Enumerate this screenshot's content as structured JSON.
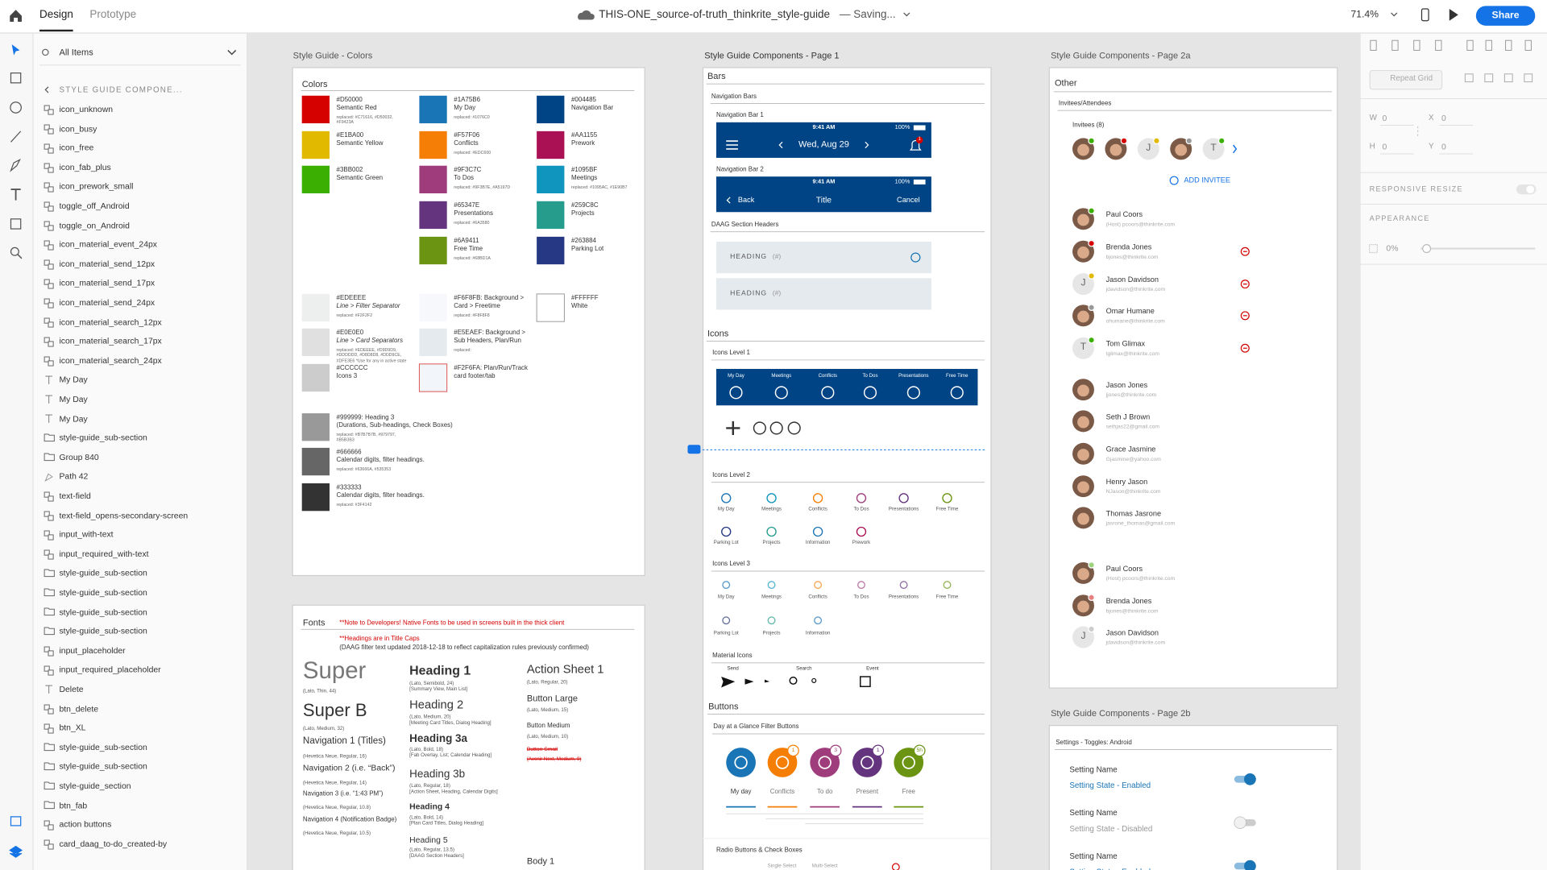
{
  "toolbar": {
    "tabs": [
      "Design",
      "Prototype"
    ],
    "document": "THIS-ONE_source-of-truth_thinkrite_style-guide",
    "status": "— Saving...",
    "zoom": "71.4%",
    "share": "Share"
  },
  "layers": {
    "search": "All Items",
    "group": "STYLE GUIDE COMPONE...",
    "items": [
      "icon_unknown",
      "icon_busy",
      "icon_free",
      "icon_fab_plus",
      "icon_prework_small",
      "toggle_off_Android",
      "toggle_on_Android",
      "icon_material_event_24px",
      "icon_material_send_12px",
      "icon_material_send_17px",
      "icon_material_send_24px",
      "icon_material_search_12px",
      "icon_material_search_17px",
      "icon_material_search_24px",
      "My Day",
      "My Day",
      "My Day",
      "style-guide_sub-section",
      "Group 840",
      "Path 42",
      "text-field",
      "text-field_opens-secondary-screen",
      "input_with-text",
      "input_required_with-text",
      "style-guide_sub-section",
      "style-guide_sub-section",
      "style-guide_sub-section",
      "style-guide_sub-section",
      "input_placeholder",
      "input_required_placeholder",
      "Delete",
      "btn_delete",
      "btn_XL",
      "style-guide_sub-section",
      "style-guide_sub-section",
      "style-guide_section",
      "btn_fab",
      "action buttons",
      "card_daag_to-do_created-by"
    ]
  },
  "properties": {
    "repeat_grid": "Repeat Grid",
    "fields": [
      {
        "label": "W",
        "value": "0"
      },
      {
        "label": "X",
        "value": "0"
      },
      {
        "label": "H",
        "value": "0"
      },
      {
        "label": "Y",
        "value": "0"
      }
    ],
    "responsive": "RESPONSIVE RESIZE",
    "appearance": "APPEARANCE",
    "opacity": "0%"
  },
  "artboards": {
    "colors": {
      "title": "Style Guide - Colors",
      "heading": "Colors",
      "swatches": [
        {
          "code": "#D50000",
          "label": "Semantic Red",
          "note": "replaced: #C71616, #D50032,\n#F9423A",
          "color": "#D50000"
        },
        {
          "code": "#E1BA00",
          "label": "Semantic Yellow",
          "color": "#E1BA00"
        },
        {
          "code": "#3BB002",
          "label": "Semantic Green",
          "color": "#3BB002"
        },
        {
          "code": "#1A75B6",
          "label": "My Day",
          "note": "replaced: #1076C0",
          "color": "#1A75B6"
        },
        {
          "code": "#F57F06",
          "label": "Conflicts",
          "note": "replaced: #EDC600",
          "color": "#F57F06"
        },
        {
          "code": "#9F3C7C",
          "label": "To Dos",
          "note": "replaced: #9F3B7E, #A5197D",
          "color": "#9F3C7C"
        },
        {
          "code": "#65347E",
          "label": "Presentations",
          "note": "replaced: #6A3580",
          "color": "#65347E"
        },
        {
          "code": "#6A9411",
          "label": "Free Time",
          "note": "replaced: #68BD1A",
          "color": "#6A9411"
        },
        {
          "code": "#004485",
          "label": "Navigation Bar",
          "color": "#004485"
        },
        {
          "code": "#AA1155",
          "label": "Prework",
          "color": "#AA1155"
        },
        {
          "code": "#1095BF",
          "label": "Meetings",
          "note": "replaced: #1095AC, #1E90B7",
          "color": "#1095BF"
        },
        {
          "code": "#259C8C",
          "label": "Projects",
          "color": "#259C8C"
        },
        {
          "code": "#263884",
          "label": "Parking Lot",
          "color": "#263884"
        },
        {
          "code": "#EDEEEE",
          "label": "Line > Filter Separator",
          "note": "replaced: #F2F2F2",
          "color": "#EDEEEE"
        },
        {
          "code": "#E0E0E0",
          "label": "Line > Card Separators",
          "note": "replaced: #EDEEEE, #D9D9D9,\n#DDDDDD, #D8D8D8, #DDD9CE,\n#DFE3E6 *Use for any in active state",
          "color": "#E0E0E0"
        },
        {
          "code": "#CCCCCC",
          "label": "Icons 3",
          "color": "#CCCCCC"
        },
        {
          "code": "#F6F8FB: Background >",
          "label": "Card > Freetime",
          "note": "replaced: #F8F8F8",
          "color": "#F6F8FB"
        },
        {
          "code": "#E5EAEF: Background >",
          "label": "Sub Headers, Plan/Run",
          "note": "replaced:",
          "color": "#E5EAEF"
        },
        {
          "code": "#F2F6FA: Plan/Run/Track",
          "label": "card footer/tab",
          "color": "#F2F6FA",
          "border": "#D9534F"
        },
        {
          "code": "#FFFFFF",
          "label": "White",
          "color": "#FFFFFF",
          "border": "#999999"
        },
        {
          "code": "#999999: Heading 3",
          "label": "(Durations, Sub-headings, Check Boxes)",
          "note": "replaced: #B7B7B7B, #979797,\n#B5B3B3",
          "color": "#999999"
        },
        {
          "code": "#666666",
          "label": "Calendar digits, filter headings.",
          "note": "replaced: #63666A, #535353",
          "color": "#666666"
        },
        {
          "code": "#333333",
          "label": "Calendar digits, filter headings.",
          "note": "replaced: #3F4142",
          "color": "#333333"
        }
      ]
    },
    "fonts": {
      "heading": "Fonts",
      "note": "**Note to Developers!  Native Fonts to be used in screens built in the thick client",
      "note2": "**Headings are in Title Caps",
      "note3": "(DAAG filter text updated 2018-12-18 to reflect capitalization rules previously confirmed)",
      "samples": [
        {
          "name": "Super",
          "spec": "(Lato, Thin, 44)"
        },
        {
          "name": "Super B",
          "spec": "(Lato, Medium, 32)"
        },
        {
          "name": "Navigation 1 (Titles)",
          "spec": "(Hevetica Neue, Regular, 16)"
        },
        {
          "name": "Navigation 2 (i.e. “Back”)",
          "spec": "(Hevetica Neue, Regular, 14)"
        },
        {
          "name": "Navigation 3 (i.e. “1:43 PM”)",
          "spec": "(Hevetica Neue, Regular, 10.8)"
        },
        {
          "name": "Navigation 4 (Notification Badge)",
          "spec": "(Hevetica Neue, Regular, 10.5)"
        },
        {
          "name": "Heading 1",
          "spec": "(Lato, Semibold, 24)\n[Summary View, Main List]"
        },
        {
          "name": "Heading 2",
          "spec": "(Lato, Medium, 20)\n[Meeting Card Titles, Dialog Heading]"
        },
        {
          "name": "Heading 3a",
          "spec": "(Lato, Bold, 18)\n[Fab Overlay, List; Calendar Heading]"
        },
        {
          "name": "Heading 3b",
          "spec": "(Lato, Regular, 18)\n[Action Sheet, Heading, Calendar Digits]"
        },
        {
          "name": "Heading 4",
          "spec": "(Lato, Bold, 14)\n[Plan Card Titles, Dialog Heading]"
        },
        {
          "name": "Heading 5",
          "spec": "(Lato, Regular, 13.5)\n[DAAG Section Headers]"
        },
        {
          "name": "Action Sheet 1",
          "spec": "(Lato, Regular, 20)"
        },
        {
          "name": "Button Large",
          "spec": "(Lato, Medium, 15)"
        },
        {
          "name": "Button Medium",
          "spec": "(Lato, Medium, 10)"
        },
        {
          "name": "Button Small",
          "spec": "(Avenir Next, Medium, 9)"
        },
        {
          "name": "Body 1"
        }
      ]
    },
    "page1": {
      "title": "Style Guide Components - Page 1",
      "bars": "Bars",
      "nav_bars": "Navigation Bars",
      "nav1": {
        "label": "Navigation Bar 1",
        "time": "9:41 AM",
        "battery": "100%",
        "date": "Wed, Aug 29",
        "badge": "1"
      },
      "nav2": {
        "label": "Navigation Bar 2",
        "time": "9:41 AM",
        "battery": "100%",
        "back": "Back",
        "title": "Title",
        "cancel": "Cancel"
      },
      "nav_color": "#004485",
      "section_headers": {
        "label": "DAAG Section Headers",
        "items": [
          {
            "text": "HEADING",
            "count": "(#)"
          },
          {
            "text": "HEADING",
            "count": "(#)"
          }
        ]
      },
      "icons": "Icons",
      "level1": {
        "label": "Icons Level 1",
        "items": [
          "My Day",
          "Meetings",
          "Conflicts",
          "To Dos",
          "Presentations",
          "Free Time"
        ]
      },
      "level2": {
        "label": "Icons Level 2",
        "items": [
          "My Day",
          "Meetings",
          "Conflicts",
          "To Dos",
          "Presentations",
          "Free Time",
          "Parking Lot",
          "Projects",
          "Information",
          "Prework"
        ],
        "colors": [
          "#1A75B6",
          "#1095BF",
          "#F57F06",
          "#9F3C7C",
          "#65347E",
          "#6A9411",
          "#263884",
          "#259C8C",
          "#1A75B6",
          "#AA1155"
        ]
      },
      "level3": {
        "label": "Icons Level 3",
        "items": [
          "My Day",
          "Meetings",
          "Conflicts",
          "To Dos",
          "Presentations",
          "Free Time",
          "Parking Lot",
          "Projects",
          "Information"
        ],
        "colors": [
          "#5A9ACB",
          "#55B4D3",
          "#F8A553",
          "#BC7AA5",
          "#9370A5",
          "#97B458",
          "#67739F",
          "#66B7AC",
          "#5A9ACB"
        ]
      },
      "material": {
        "label": "Material Icons",
        "items": [
          "Send",
          "Search",
          "Event"
        ]
      },
      "buttons": "Buttons",
      "filters": {
        "label": "Day at a Glance Filter Buttons",
        "items": [
          {
            "label": "My day",
            "color": "#1A75B6"
          },
          {
            "label": "Conflicts",
            "color": "#F57F06",
            "badge": "1"
          },
          {
            "label": "To do",
            "color": "#9F3C7C",
            "badge": "3"
          },
          {
            "label": "Present",
            "color": "#65347E",
            "badge": "1"
          },
          {
            "label": "Free",
            "color": "#6A9411",
            "badge": "5h"
          }
        ]
      },
      "radio": {
        "label": "Radio Buttons & Check Boxes",
        "single": "Single Select",
        "multi": "Multi-Select"
      }
    },
    "page2a": {
      "title": "Style Guide Components - Page 2a",
      "heading": "Other",
      "section": "Invitees/Attendees",
      "invitees": "Invitees (8)",
      "avatars": [
        {
          "status": "#3BB002"
        },
        {
          "status": "#D50000"
        },
        {
          "initial": "J",
          "status": "#E1BA00"
        },
        {
          "status": "#999999"
        },
        {
          "initial": "T",
          "status": "#3BB002"
        }
      ],
      "add": "ADD INVITEE",
      "groups": [
        [
          {
            "name": "Paul Coors",
            "email": "(Host) pcoors@thinkrite.com",
            "status": "#3BB002"
          },
          {
            "name": "Brenda Jones",
            "email": "bjones@thinkrite.com",
            "status": "#D50000"
          },
          {
            "name": "Jason Davidson",
            "email": "jdavidson@thinkrite.com",
            "initial": "J",
            "status": "#E1BA00"
          },
          {
            "name": "Omar Humane",
            "email": "ohumane@thinkrite.com",
            "status": "#999999"
          },
          {
            "name": "Tom Glimax",
            "email": "tglimax@thinkrite.com",
            "initial": "T",
            "status": "#3BB002"
          }
        ],
        [
          {
            "name": "Jason Jones",
            "email": "jjones@thinkrite.com"
          },
          {
            "name": "Seth J Brown",
            "email": "sethjas22@gmail.com"
          },
          {
            "name": "Grace Jasmine",
            "email": "Gjasmine@yahoo.com"
          },
          {
            "name": "Henry Jason",
            "email": "NJason@thinkrite.com"
          },
          {
            "name": "Thomas Jasrone",
            "email": "jasrone_thomas@gmail.com"
          }
        ],
        [
          {
            "name": "Paul Coors",
            "email": "(Host) pcoors@thinkrite.com",
            "status": "#9BD37E"
          },
          {
            "name": "Brenda Jones",
            "email": "bjones@thinkrite.com",
            "status": "#E88080"
          },
          {
            "name": "Jason Davidson",
            "email": "jdavidson@thinkrite.com",
            "initial": "J",
            "status": "#CCCCCC"
          }
        ]
      ]
    },
    "page2b": {
      "title": "Style Guide Components - Page 2b",
      "section": "Settings - Toggles: Android",
      "toggles": [
        {
          "name": "Setting Name",
          "state": "Setting State - Enabled",
          "on": true
        },
        {
          "name": "Setting Name",
          "state": "Setting State - Disabled",
          "on": false
        },
        {
          "name": "Setting Name",
          "state": "Setting State - Enabled",
          "on": true
        }
      ]
    }
  }
}
